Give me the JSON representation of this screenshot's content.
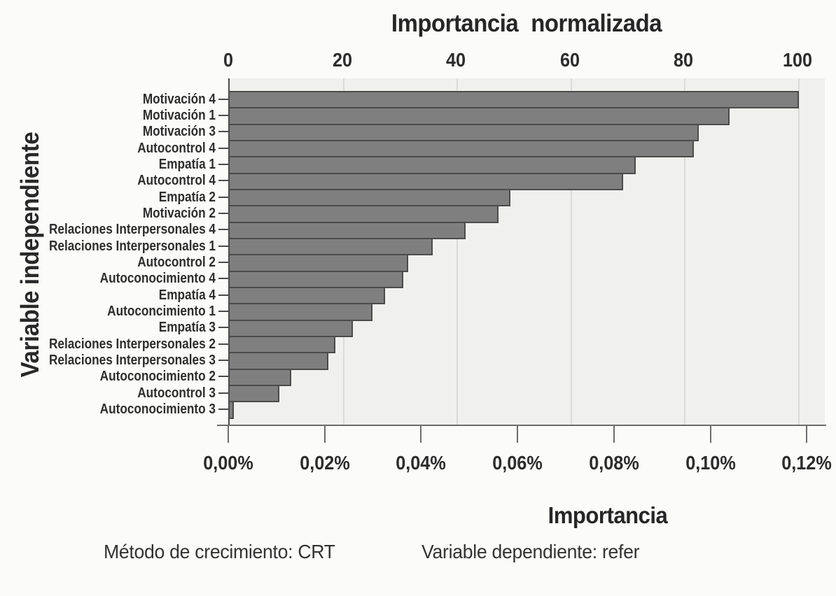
{
  "title_top": "Importancia  normalizada",
  "y_axis_label": "Variable independiente",
  "x_axis_bottom_label": "Importancia",
  "footnotes": {
    "method": "Método de crecimiento: CRT",
    "dependent": "Variable dependiente: refer"
  },
  "chart_data": {
    "type": "bar",
    "orientation": "horizontal",
    "title": "Importancia  normalizada",
    "xlabel_top": "Importancia normalizada",
    "xlabel_bottom": "Importancia",
    "ylabel": "Variable independiente",
    "x_top_axis": {
      "ticks": [
        0,
        20,
        40,
        60,
        80,
        100
      ],
      "range": [
        0,
        105
      ],
      "gridlines": true
    },
    "x_bottom_axis": {
      "tick_labels": [
        "0,00%",
        "0,02%",
        "0,04%",
        "0,06%",
        "0,08%",
        "0,10%",
        "0,12%"
      ],
      "range_pct": [
        0.0,
        0.124
      ]
    },
    "categories": [
      "Motivación 4",
      "Motivación 1",
      "Motivación 3",
      "Autocontrol 4",
      "Empatía 1",
      "Autocontrol 4",
      "Empatía 2",
      "Motivación 2",
      "Relaciones Interpersonales 4",
      "Relaciones Interpersonales 1",
      "Autocontrol 2",
      "Autoconocimiento 4",
      "Empatía 4",
      "Autoconcimiento 1",
      "Empatía 3",
      "Relaciones Interpersonales 2",
      "Relaciones Interpersonales 3",
      "Autoconocimiento 2",
      "Autocontrol 3",
      "Autoconocimiento 3"
    ],
    "values_normalized": [
      100,
      87.8,
      82.4,
      81.5,
      71.4,
      69.1,
      49.3,
      47.2,
      41.5,
      35.7,
      31.4,
      30.5,
      27.3,
      25.1,
      21.6,
      18.6,
      17.3,
      10.8,
      8.7,
      0.7
    ],
    "values_importance_pct": [
      0.118,
      0.104,
      0.097,
      0.096,
      0.084,
      0.082,
      0.058,
      0.056,
      0.049,
      0.042,
      0.037,
      0.036,
      0.032,
      0.03,
      0.026,
      0.022,
      0.02,
      0.013,
      0.01,
      0.001
    ],
    "footnote_method": "Método de crecimiento: CRT",
    "footnote_dependent": "Variable dependiente: refer",
    "legend": null,
    "colors": {
      "bar_fill": "#7f7f80",
      "bar_border": "#4b4b4b",
      "plot_background": "#f0f0ef",
      "gridline": "#dbdbd9",
      "axis_line": "#6d6d6d",
      "text": "#2c2c2c",
      "page_background": "#fbfbfa"
    }
  }
}
